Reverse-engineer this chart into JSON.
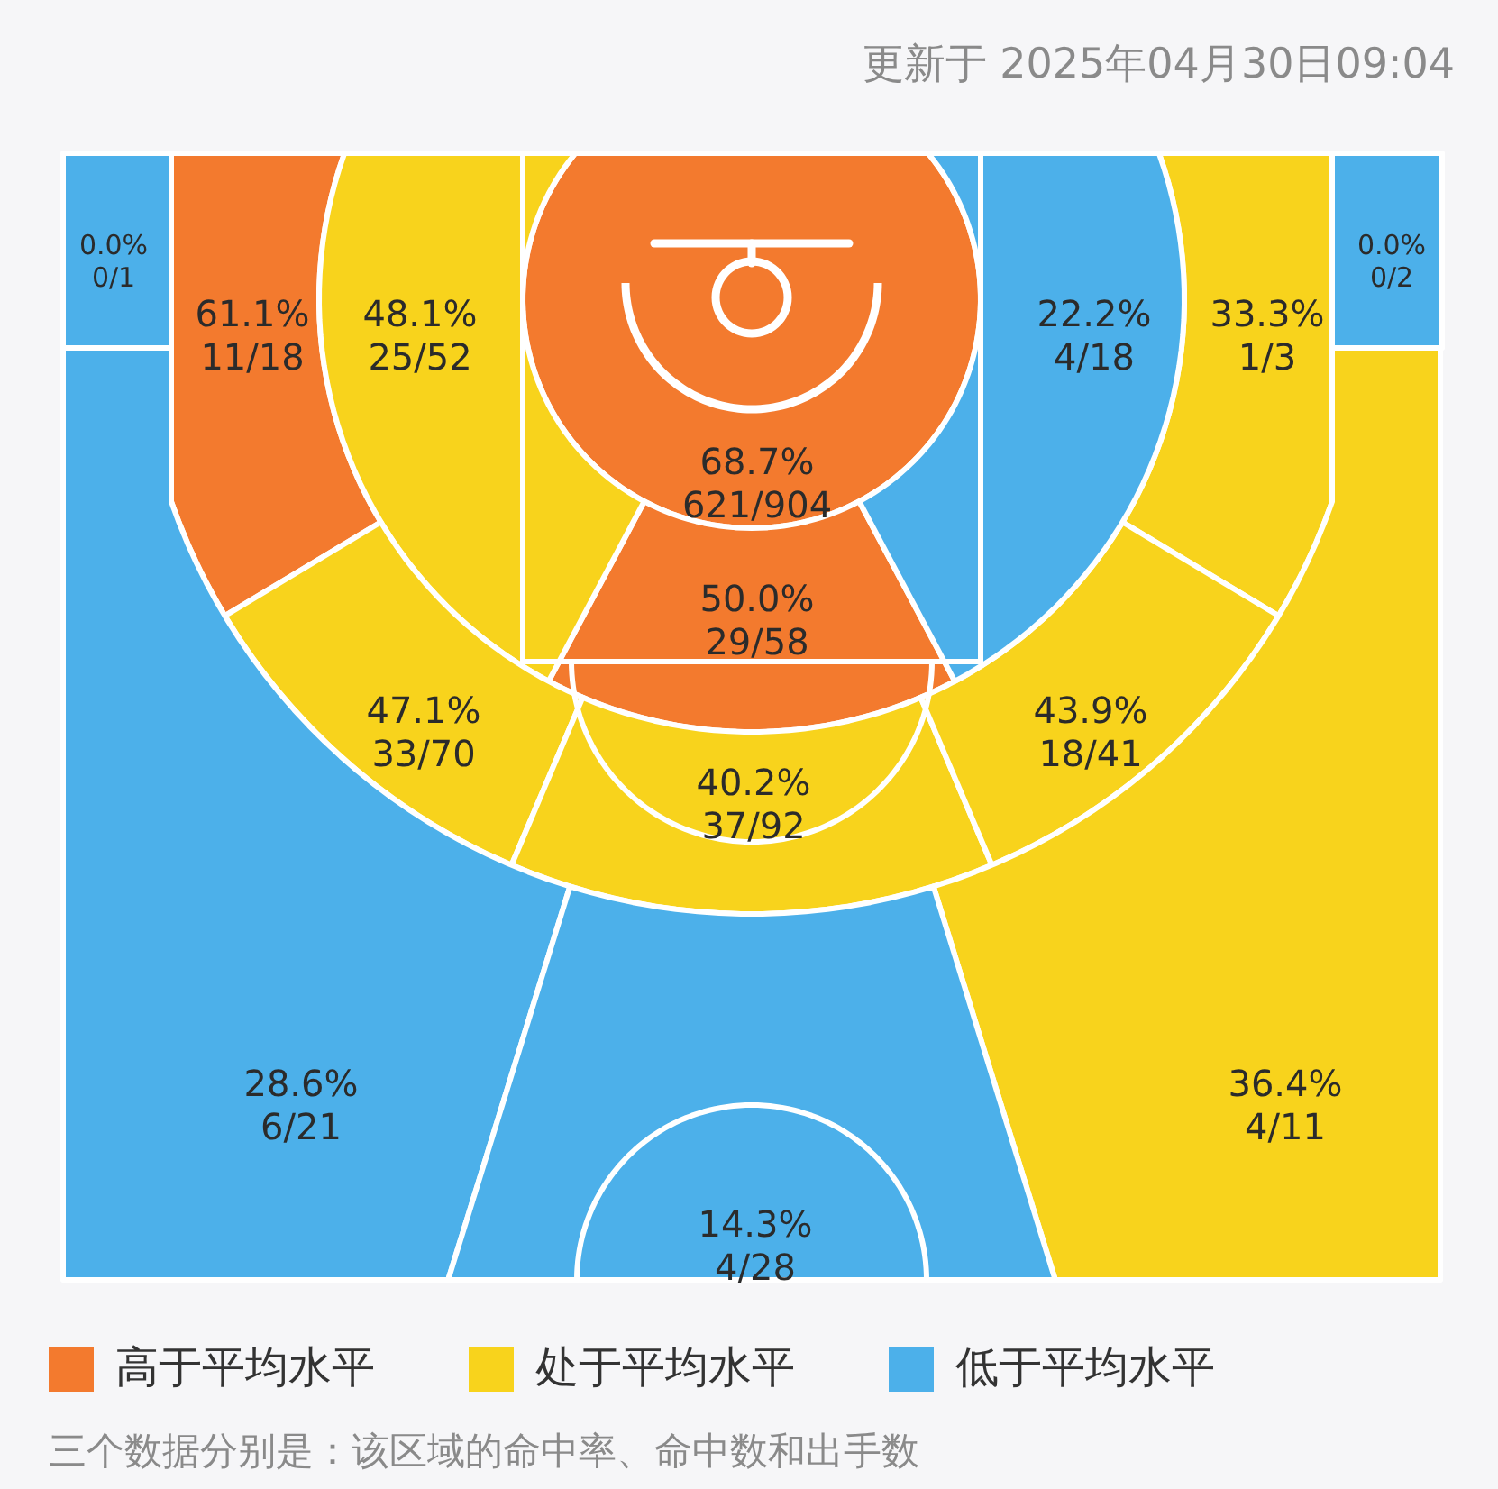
{
  "chart_data": {
    "type": "other",
    "subtitle": "更新于 2025年04月30日09:04",
    "categories": [
      "0/1",
      "11/18",
      "25/52",
      "621/904",
      "4/18",
      "1/3",
      "0/2",
      "29/58",
      "33/70",
      "37/92",
      "18/41",
      "6/21",
      "4/28",
      "4/11"
    ],
    "series": [
      {
        "name": "高于平均水平",
        "color": "#f37a2e",
        "values": [
          null,
          61.1,
          null,
          68.7,
          null,
          null,
          null,
          50.0,
          null,
          null,
          null,
          null,
          null,
          null
        ],
        "value_labels": [
          null,
          "61.1%",
          null,
          "68.7%",
          null,
          null,
          null,
          "50.0%",
          null,
          null,
          null,
          null,
          null,
          null
        ]
      },
      {
        "name": "处于平均水平",
        "color": "#f8d31c",
        "values": [
          null,
          null,
          48.1,
          null,
          null,
          33.3,
          null,
          null,
          47.1,
          40.2,
          43.9,
          null,
          null,
          36.4
        ],
        "value_labels": [
          null,
          null,
          "48.1%",
          null,
          null,
          "33.3%",
          null,
          null,
          "47.1%",
          "40.2%",
          "43.9%",
          null,
          null,
          "36.4%"
        ]
      },
      {
        "name": "低于平均水平",
        "color": "#4cb0ea",
        "values": [
          0.0,
          null,
          null,
          null,
          22.2,
          null,
          0.0,
          null,
          null,
          null,
          null,
          28.6,
          14.3,
          null
        ],
        "value_labels": [
          "0.0%",
          null,
          null,
          null,
          "22.2%",
          null,
          "0.0%",
          null,
          null,
          null,
          null,
          "28.6%",
          "14.3%",
          null
        ]
      }
    ],
    "legend": "bottom",
    "annotations": [
      "三个数据分别是：该区域的命中率、命中数和出手数"
    ]
  }
}
